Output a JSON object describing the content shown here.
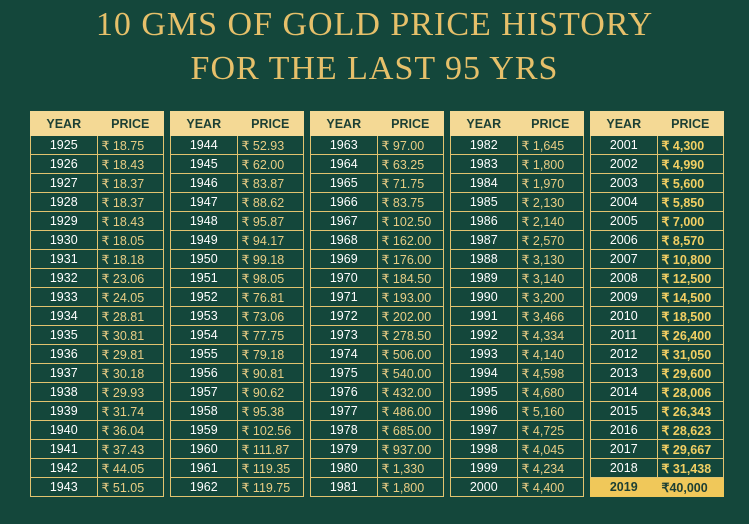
{
  "title": {
    "line1": "10 GMS OF GOLD PRICE HISTORY",
    "line2": "FOR THE LAST 95 YRS"
  },
  "headers": {
    "year": "YEAR",
    "price": "PRICE"
  },
  "columns": [
    {
      "rows": [
        {
          "year": "1925",
          "price": "₹ 18.75"
        },
        {
          "year": "1926",
          "price": "₹ 18.43"
        },
        {
          "year": "1927",
          "price": "₹ 18.37"
        },
        {
          "year": "1928",
          "price": "₹ 18.37"
        },
        {
          "year": "1929",
          "price": "₹ 18.43"
        },
        {
          "year": "1930",
          "price": "₹ 18.05"
        },
        {
          "year": "1931",
          "price": "₹ 18.18"
        },
        {
          "year": "1932",
          "price": "₹ 23.06"
        },
        {
          "year": "1933",
          "price": "₹ 24.05"
        },
        {
          "year": "1934",
          "price": "₹ 28.81"
        },
        {
          "year": "1935",
          "price": "₹ 30.81"
        },
        {
          "year": "1936",
          "price": "₹ 29.81"
        },
        {
          "year": "1937",
          "price": "₹ 30.18"
        },
        {
          "year": "1938",
          "price": "₹ 29.93"
        },
        {
          "year": "1939",
          "price": "₹ 31.74"
        },
        {
          "year": "1940",
          "price": "₹ 36.04"
        },
        {
          "year": "1941",
          "price": "₹ 37.43"
        },
        {
          "year": "1942",
          "price": "₹ 44.05"
        },
        {
          "year": "1943",
          "price": "₹ 51.05"
        }
      ]
    },
    {
      "rows": [
        {
          "year": "1944",
          "price": "₹ 52.93"
        },
        {
          "year": "1945",
          "price": "₹ 62.00"
        },
        {
          "year": "1946",
          "price": "₹ 83.87"
        },
        {
          "year": "1947",
          "price": "₹ 88.62"
        },
        {
          "year": "1948",
          "price": "₹ 95.87"
        },
        {
          "year": "1949",
          "price": "₹ 94.17"
        },
        {
          "year": "1950",
          "price": "₹ 99.18"
        },
        {
          "year": "1951",
          "price": "₹ 98.05"
        },
        {
          "year": "1952",
          "price": "₹ 76.81"
        },
        {
          "year": "1953",
          "price": "₹ 73.06"
        },
        {
          "year": "1954",
          "price": "₹ 77.75"
        },
        {
          "year": "1955",
          "price": "₹ 79.18"
        },
        {
          "year": "1956",
          "price": "₹ 90.81"
        },
        {
          "year": "1957",
          "price": "₹ 90.62"
        },
        {
          "year": "1958",
          "price": "₹ 95.38"
        },
        {
          "year": "1959",
          "price": "₹ 102.56"
        },
        {
          "year": "1960",
          "price": "₹ 111.87"
        },
        {
          "year": "1961",
          "price": "₹ 119.35"
        },
        {
          "year": "1962",
          "price": "₹ 119.75"
        }
      ]
    },
    {
      "rows": [
        {
          "year": "1963",
          "price": "₹ 97.00"
        },
        {
          "year": "1964",
          "price": "₹ 63.25"
        },
        {
          "year": "1965",
          "price": "₹ 71.75"
        },
        {
          "year": "1966",
          "price": "₹ 83.75"
        },
        {
          "year": "1967",
          "price": "₹ 102.50"
        },
        {
          "year": "1968",
          "price": "₹ 162.00"
        },
        {
          "year": "1969",
          "price": "₹ 176.00"
        },
        {
          "year": "1970",
          "price": "₹ 184.50"
        },
        {
          "year": "1971",
          "price": "₹ 193.00"
        },
        {
          "year": "1972",
          "price": "₹ 202.00"
        },
        {
          "year": "1973",
          "price": "₹ 278.50"
        },
        {
          "year": "1974",
          "price": "₹ 506.00"
        },
        {
          "year": "1975",
          "price": "₹ 540.00"
        },
        {
          "year": "1976",
          "price": "₹ 432.00"
        },
        {
          "year": "1977",
          "price": "₹ 486.00"
        },
        {
          "year": "1978",
          "price": "₹ 685.00"
        },
        {
          "year": "1979",
          "price": "₹ 937.00"
        },
        {
          "year": "1980",
          "price": "₹ 1,330"
        },
        {
          "year": "1981",
          "price": "₹ 1,800"
        }
      ]
    },
    {
      "rows": [
        {
          "year": "1982",
          "price": "₹ 1,645"
        },
        {
          "year": "1983",
          "price": "₹ 1,800"
        },
        {
          "year": "1984",
          "price": "₹ 1,970"
        },
        {
          "year": "1985",
          "price": "₹ 2,130"
        },
        {
          "year": "1986",
          "price": "₹ 2,140"
        },
        {
          "year": "1987",
          "price": "₹ 2,570"
        },
        {
          "year": "1988",
          "price": "₹ 3,130"
        },
        {
          "year": "1989",
          "price": "₹ 3,140"
        },
        {
          "year": "1990",
          "price": "₹ 3,200"
        },
        {
          "year": "1991",
          "price": "₹ 3,466"
        },
        {
          "year": "1992",
          "price": "₹ 4,334"
        },
        {
          "year": "1993",
          "price": "₹ 4,140"
        },
        {
          "year": "1994",
          "price": "₹ 4,598"
        },
        {
          "year": "1995",
          "price": "₹ 4,680"
        },
        {
          "year": "1996",
          "price": "₹ 5,160"
        },
        {
          "year": "1997",
          "price": "₹ 4,725"
        },
        {
          "year": "1998",
          "price": "₹ 4,045"
        },
        {
          "year": "1999",
          "price": "₹ 4,234"
        },
        {
          "year": "2000",
          "price": "₹ 4,400"
        }
      ]
    },
    {
      "rows": [
        {
          "year": "2001",
          "price": "₹ 4,300"
        },
        {
          "year": "2002",
          "price": "₹ 4,990"
        },
        {
          "year": "2003",
          "price": "₹ 5,600"
        },
        {
          "year": "2004",
          "price": "₹ 5,850"
        },
        {
          "year": "2005",
          "price": "₹ 7,000"
        },
        {
          "year": "2006",
          "price": "₹ 8,570"
        },
        {
          "year": "2007",
          "price": "₹ 10,800"
        },
        {
          "year": "2008",
          "price": "₹ 12,500"
        },
        {
          "year": "2009",
          "price": "₹ 14,500"
        },
        {
          "year": "2010",
          "price": "₹ 18,500"
        },
        {
          "year": "2011",
          "price": "₹ 26,400"
        },
        {
          "year": "2012",
          "price": "₹ 31,050"
        },
        {
          "year": "2013",
          "price": "₹ 29,600"
        },
        {
          "year": "2014",
          "price": "₹ 28,006"
        },
        {
          "year": "2015",
          "price": "₹ 26,343"
        },
        {
          "year": "2016",
          "price": "₹ 28,623"
        },
        {
          "year": "2017",
          "price": "₹ 29,667"
        },
        {
          "year": "2018",
          "price": "₹ 31,438"
        },
        {
          "year": "2019",
          "price": "₹40,000"
        }
      ]
    }
  ]
}
